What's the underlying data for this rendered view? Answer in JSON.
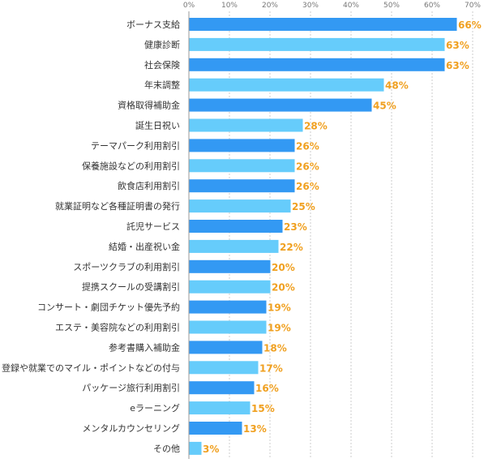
{
  "chart_data": {
    "type": "bar",
    "orientation": "horizontal",
    "categories": [
      "ボーナス支給",
      "健康診断",
      "社会保険",
      "年末調整",
      "資格取得補助金",
      "誕生日祝い",
      "テーマパーク利用割引",
      "保養施設などの利用割引",
      "飲食店利用割引",
      "就業証明など各種証明書の発行",
      "託児サービス",
      "結婚・出産祝い金",
      "スポーツクラブの利用割引",
      "提携スクールの受講割引",
      "コンサート・劇団チケット優先予約",
      "エステ・美容院などの利用割引",
      "参考書購入補助金",
      "登録や就業でのマイル・ポイントなどの付与",
      "パッケージ旅行利用割引",
      "eラーニング",
      "メンタルカウンセリング",
      "その他"
    ],
    "values": [
      66,
      63,
      63,
      48,
      45,
      28,
      26,
      26,
      26,
      25,
      23,
      22,
      20,
      20,
      19,
      19,
      18,
      17,
      16,
      15,
      13,
      3
    ],
    "value_labels": [
      "66%",
      "63%",
      "63%",
      "48%",
      "45%",
      "28%",
      "26%",
      "26%",
      "26%",
      "25%",
      "23%",
      "22%",
      "20%",
      "20%",
      "19%",
      "19%",
      "18%",
      "17%",
      "16%",
      "15%",
      "13%",
      "3%"
    ],
    "xlim": [
      0,
      70
    ],
    "x_ticks": [
      "0%",
      "10%",
      "20%",
      "30%",
      "40%",
      "50%",
      "60%",
      "70%"
    ],
    "grid": true,
    "colors": {
      "bar_dark": "#3399f3",
      "bar_light": "#66ccfb",
      "value_label": "#f0a020",
      "grid": "#cccccc"
    }
  }
}
